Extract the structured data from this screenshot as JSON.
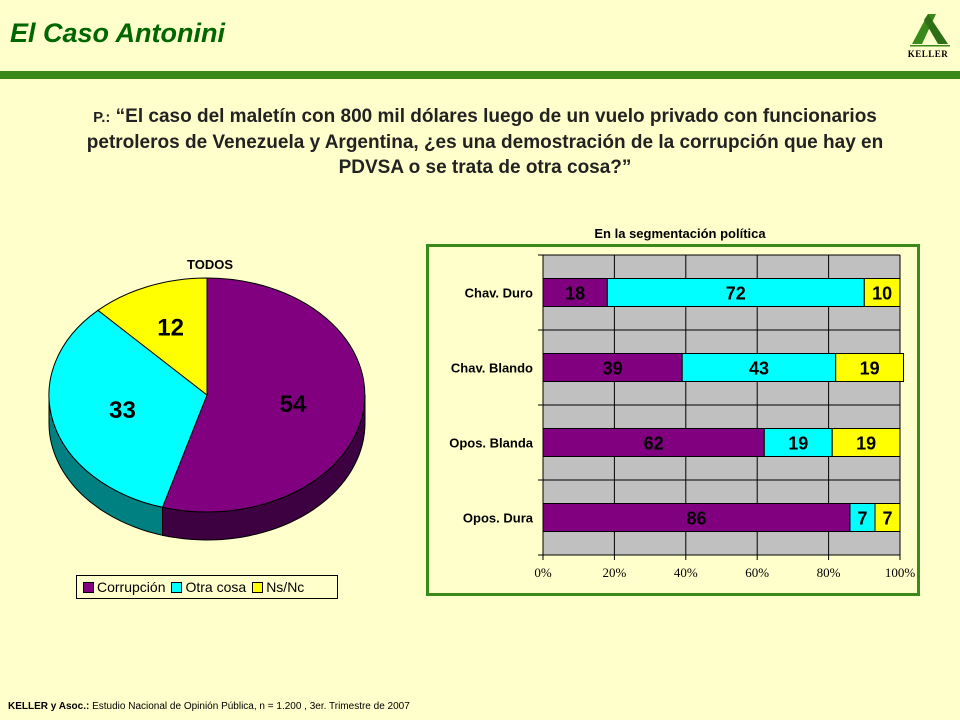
{
  "header": {
    "title": "El Caso Antonini",
    "logo_text": "KELLER"
  },
  "question": {
    "prefix": "P.:",
    "text": "“El caso del maletín con 800 mil dólares luego de un vuelo privado con funcionarios petroleros de Venezuela y Argentina, ¿es una demostración de la corrupción que hay en PDVSA o se trata de otra cosa?”"
  },
  "colors": {
    "corrupcion": "#800080",
    "otra_cosa": "#00ffff",
    "nsnc": "#ffff00",
    "accent": "#3a8a1a"
  },
  "chart_data": [
    {
      "type": "pie",
      "title": "TODOS",
      "labels": [
        "Corrupción",
        "Otra cosa",
        "Ns/Nc"
      ],
      "values": [
        54,
        33,
        12
      ],
      "legend_position": "bottom"
    },
    {
      "type": "bar",
      "orientation": "horizontal",
      "stacked": "percent",
      "title": "En la segmentación política",
      "categories": [
        "Chav. Duro",
        "Chav. Blando",
        "Opos. Blanda",
        "Opos. Dura"
      ],
      "series": [
        {
          "name": "Corrupción",
          "values": [
            18,
            39,
            62,
            86
          ]
        },
        {
          "name": "Otra cosa",
          "values": [
            72,
            43,
            19,
            7
          ]
        },
        {
          "name": "Ns/Nc",
          "values": [
            10,
            19,
            19,
            7
          ]
        }
      ],
      "xticks": [
        "0%",
        "20%",
        "40%",
        "60%",
        "80%",
        "100%"
      ],
      "xlim": [
        0,
        100
      ],
      "grid": true
    }
  ],
  "legend": {
    "items": [
      "Corrupción",
      "Otra cosa",
      "Ns/Nc"
    ]
  },
  "footer": {
    "source_bold": "KELLER y Asoc.:",
    "source_text": "Estudio Nacional de Opinión Pública, n = 1.200 , 3er. Trimestre de 2007"
  }
}
